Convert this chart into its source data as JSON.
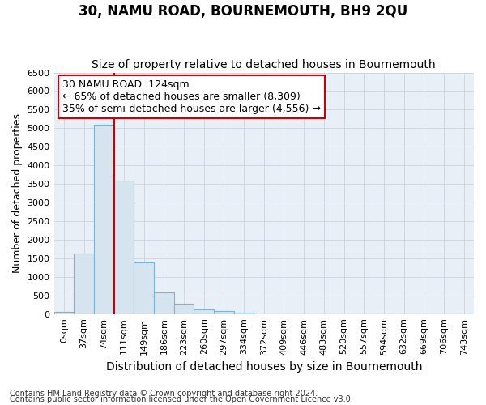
{
  "title": "30, NAMU ROAD, BOURNEMOUTH, BH9 2QU",
  "subtitle": "Size of property relative to detached houses in Bournemouth",
  "xlabel": "Distribution of detached houses by size in Bournemouth",
  "ylabel": "Number of detached properties",
  "footer_line1": "Contains HM Land Registry data © Crown copyright and database right 2024.",
  "footer_line2": "Contains public sector information licensed under the Open Government Licence v3.0.",
  "categories": [
    "0sqm",
    "37sqm",
    "74sqm",
    "111sqm",
    "149sqm",
    "186sqm",
    "223sqm",
    "260sqm",
    "297sqm",
    "334sqm",
    "372sqm",
    "409sqm",
    "446sqm",
    "483sqm",
    "520sqm",
    "557sqm",
    "594sqm",
    "632sqm",
    "669sqm",
    "706sqm",
    "743sqm"
  ],
  "values": [
    60,
    1620,
    5100,
    3580,
    1380,
    580,
    270,
    120,
    80,
    30,
    0,
    0,
    0,
    0,
    0,
    0,
    0,
    0,
    0,
    0,
    0
  ],
  "bar_color": "#d6e4f0",
  "bar_edge_color": "#7db3d8",
  "vline_x": 2.5,
  "vline_color": "#cc0000",
  "annotation_text": "30 NAMU ROAD: 124sqm\n← 65% of detached houses are smaller (8,309)\n35% of semi-detached houses are larger (4,556) →",
  "annotation_box_color": "#ffffff",
  "annotation_box_edge": "#cc0000",
  "ylim": [
    0,
    6500
  ],
  "yticks": [
    0,
    500,
    1000,
    1500,
    2000,
    2500,
    3000,
    3500,
    4000,
    4500,
    5000,
    5500,
    6000,
    6500
  ],
  "grid_color": "#c8d4e0",
  "bg_color": "#e8eff6",
  "title_fontsize": 12,
  "subtitle_fontsize": 10,
  "axis_label_fontsize": 9,
  "tick_fontsize": 8,
  "annotation_fontsize": 9,
  "footer_fontsize": 7
}
